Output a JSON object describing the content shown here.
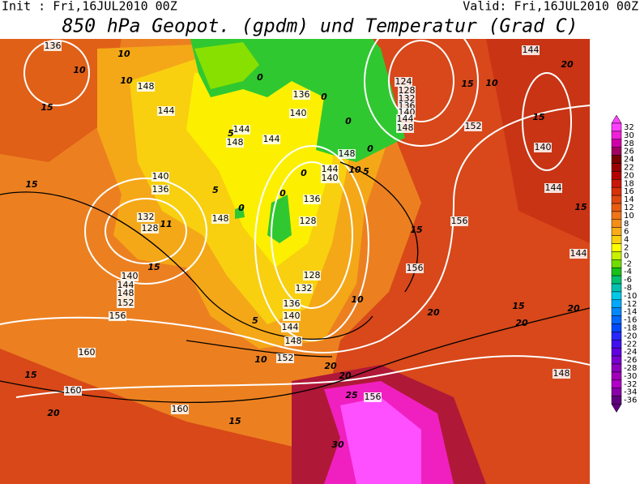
{
  "header": {
    "init": "Init : Fri,16JUL2010 00Z",
    "valid": "Valid: Fri,16JUL2010 00Z",
    "title": "850 hPa Geopot. (gpdm) und Temperatur (Grad C)"
  },
  "colorbar": {
    "levels": [
      32,
      30,
      28,
      26,
      24,
      22,
      20,
      18,
      16,
      14,
      12,
      10,
      8,
      6,
      4,
      2,
      0,
      -2,
      -4,
      -6,
      -8,
      -10,
      -12,
      -14,
      -16,
      -18,
      -20,
      -22,
      -24,
      -26,
      -28,
      -30,
      -32,
      -34,
      -36
    ],
    "colors": [
      "#ff40ff",
      "#f020d8",
      "#d000a8",
      "#a00060",
      "#780000",
      "#980000",
      "#b40000",
      "#c81808",
      "#d83008",
      "#e04810",
      "#e85c10",
      "#f07418",
      "#f48e18",
      "#f8ac18",
      "#fcd010",
      "#ffff00",
      "#c8f000",
      "#70dc00",
      "#18c018",
      "#00c070",
      "#00c0b0",
      "#00c8e8",
      "#00a8ff",
      "#0088ff",
      "#0068ff",
      "#0048ff",
      "#2828ff",
      "#4010f0",
      "#6000e0",
      "#7800d0",
      "#8c00c0",
      "#a000b8",
      "#b000c8",
      "#8800a8",
      "#600080"
    ]
  },
  "map": {
    "geopotential_labels": [
      "136",
      "148",
      "144",
      "140",
      "136",
      "132",
      "128",
      "140",
      "144",
      "148",
      "152",
      "156",
      "160",
      "160",
      "160",
      "144",
      "148",
      "144",
      "136",
      "140",
      "148",
      "136",
      "128",
      "128",
      "132",
      "136",
      "140",
      "144",
      "148",
      "152",
      "144",
      "140",
      "148",
      "124",
      "128",
      "132",
      "136",
      "140",
      "144",
      "148",
      "152",
      "144",
      "140",
      "144",
      "156",
      "156",
      "144",
      "148",
      "156"
    ],
    "temperature_labels": [
      "10",
      "15",
      "10",
      "15",
      "10",
      "0",
      "5",
      "5",
      "0",
      "0",
      "0",
      "0",
      "0",
      "0",
      "5",
      "10",
      "15",
      "10",
      "15",
      "15",
      "15",
      "20",
      "10",
      "5",
      "10",
      "20",
      "20",
      "25",
      "30",
      "15",
      "15",
      "20",
      "20",
      "15",
      "20",
      "20",
      "11",
      "15"
    ]
  }
}
